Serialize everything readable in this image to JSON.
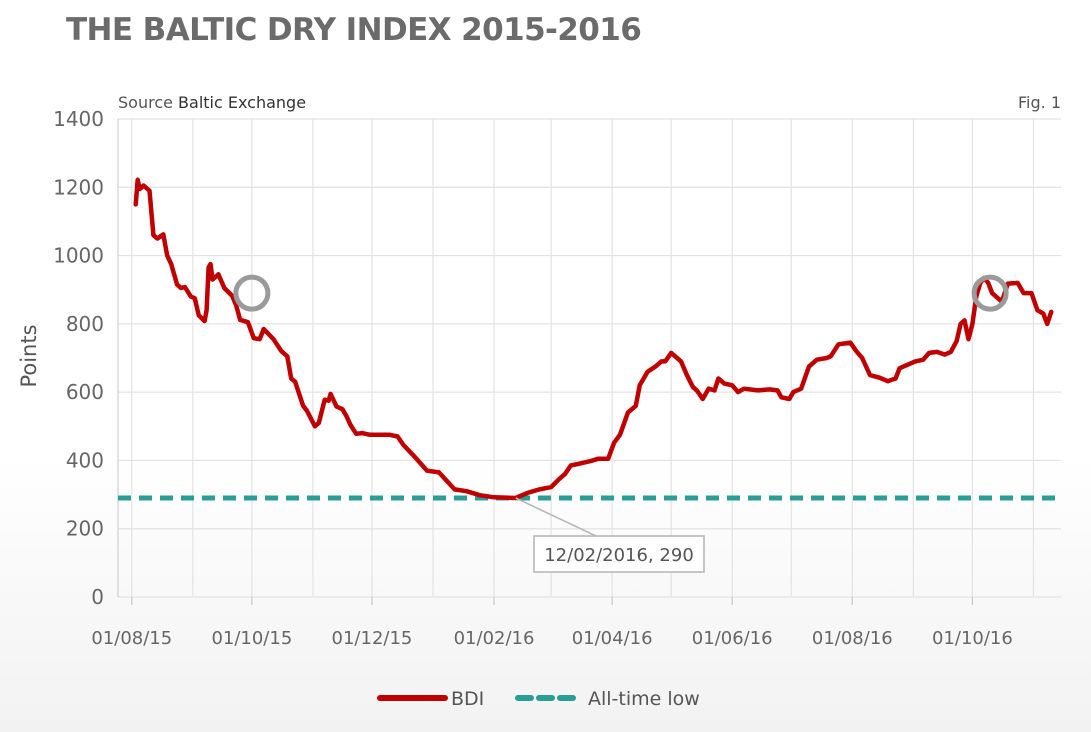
{
  "title": "THE BALTIC DRY INDEX 2015-2016",
  "source_prefix": "Source ",
  "source_name": "Baltic Exchange",
  "fig_label": "Fig. 1",
  "annotation": "12/02/2016, 290",
  "chart_data": {
    "type": "line",
    "title": "THE BALTIC DRY INDEX 2015-2016",
    "ylabel": "Points",
    "xlabel": "",
    "ylim": [
      0,
      1400
    ],
    "xlim": [
      "2015-08-01",
      "2016-10-31"
    ],
    "yticks": [
      0,
      200,
      400,
      600,
      800,
      1000,
      1200,
      1400
    ],
    "xtick_labels": [
      "01/08/15",
      "01/10/15",
      "01/12/15",
      "01/02/16",
      "01/04/16",
      "01/06/16",
      "01/08/16",
      "01/10/16"
    ],
    "xtick_dates": [
      "2015-08-01",
      "2015-10-01",
      "2015-12-01",
      "2016-02-01",
      "2016-04-01",
      "2016-06-01",
      "2016-08-01",
      "2016-10-01"
    ],
    "grid": true,
    "legend_position": "bottom-center",
    "colors": {
      "bdi": "#c00000",
      "low": "#2a9d96",
      "circle": "#9a9a9a",
      "grid": "#e3e3e3"
    },
    "series": [
      {
        "name": "BDI",
        "points": [
          [
            "2015-08-03",
            1150
          ],
          [
            "2015-08-04",
            1222
          ],
          [
            "2015-08-05",
            1195
          ],
          [
            "2015-08-07",
            1205
          ],
          [
            "2015-08-10",
            1190
          ],
          [
            "2015-08-12",
            1060
          ],
          [
            "2015-08-14",
            1050
          ],
          [
            "2015-08-17",
            1062
          ],
          [
            "2015-08-19",
            1000
          ],
          [
            "2015-08-21",
            975
          ],
          [
            "2015-08-24",
            915
          ],
          [
            "2015-08-26",
            905
          ],
          [
            "2015-08-28",
            908
          ],
          [
            "2015-08-31",
            880
          ],
          [
            "2015-09-02",
            875
          ],
          [
            "2015-09-04",
            825
          ],
          [
            "2015-09-07",
            808
          ],
          [
            "2015-09-08",
            840
          ],
          [
            "2015-09-09",
            965
          ],
          [
            "2015-09-10",
            975
          ],
          [
            "2015-09-11",
            930
          ],
          [
            "2015-09-14",
            945
          ],
          [
            "2015-09-17",
            905
          ],
          [
            "2015-09-21",
            882
          ],
          [
            "2015-09-23",
            855
          ],
          [
            "2015-09-25",
            812
          ],
          [
            "2015-09-29",
            805
          ],
          [
            "2015-10-02",
            758
          ],
          [
            "2015-10-05",
            755
          ],
          [
            "2015-10-07",
            785
          ],
          [
            "2015-10-12",
            755
          ],
          [
            "2015-10-16",
            720
          ],
          [
            "2015-10-19",
            705
          ],
          [
            "2015-10-21",
            640
          ],
          [
            "2015-10-23",
            630
          ],
          [
            "2015-10-27",
            560
          ],
          [
            "2015-10-29",
            545
          ],
          [
            "2015-11-02",
            500
          ],
          [
            "2015-11-04",
            510
          ],
          [
            "2015-11-07",
            578
          ],
          [
            "2015-11-09",
            575
          ],
          [
            "2015-11-10",
            595
          ],
          [
            "2015-11-13",
            558
          ],
          [
            "2015-11-16",
            550
          ],
          [
            "2015-11-18",
            530
          ],
          [
            "2015-11-20",
            505
          ],
          [
            "2015-11-23",
            478
          ],
          [
            "2015-11-26",
            480
          ],
          [
            "2015-11-30",
            475
          ],
          [
            "2015-12-10",
            475
          ],
          [
            "2015-12-14",
            470
          ],
          [
            "2015-12-17",
            445
          ],
          [
            "2015-12-22",
            415
          ],
          [
            "2015-12-29",
            370
          ],
          [
            "2016-01-04",
            365
          ],
          [
            "2016-01-08",
            340
          ],
          [
            "2016-01-12",
            315
          ],
          [
            "2016-01-18",
            310
          ],
          [
            "2016-01-25",
            298
          ],
          [
            "2016-02-01",
            292
          ],
          [
            "2016-02-12",
            290
          ],
          [
            "2016-02-18",
            305
          ],
          [
            "2016-02-24",
            315
          ],
          [
            "2016-03-01",
            322
          ],
          [
            "2016-03-05",
            345
          ],
          [
            "2016-03-08",
            360
          ],
          [
            "2016-03-11",
            385
          ],
          [
            "2016-03-15",
            390
          ],
          [
            "2016-03-21",
            398
          ],
          [
            "2016-03-25",
            405
          ],
          [
            "2016-03-30",
            405
          ],
          [
            "2016-04-02",
            452
          ],
          [
            "2016-04-05",
            475
          ],
          [
            "2016-04-09",
            540
          ],
          [
            "2016-04-13",
            560
          ],
          [
            "2016-04-15",
            620
          ],
          [
            "2016-04-19",
            660
          ],
          [
            "2016-04-23",
            675
          ],
          [
            "2016-04-26",
            690
          ],
          [
            "2016-04-28",
            690
          ],
          [
            "2016-05-01",
            715
          ],
          [
            "2016-05-04",
            700
          ],
          [
            "2016-05-06",
            690
          ],
          [
            "2016-05-09",
            650
          ],
          [
            "2016-05-12",
            615
          ],
          [
            "2016-05-14",
            605
          ],
          [
            "2016-05-17",
            580
          ],
          [
            "2016-05-20",
            610
          ],
          [
            "2016-05-23",
            605
          ],
          [
            "2016-05-25",
            640
          ],
          [
            "2016-05-28",
            625
          ],
          [
            "2016-06-01",
            620
          ],
          [
            "2016-06-04",
            600
          ],
          [
            "2016-06-07",
            610
          ],
          [
            "2016-06-14",
            605
          ],
          [
            "2016-06-20",
            608
          ],
          [
            "2016-06-24",
            605
          ],
          [
            "2016-06-26",
            585
          ],
          [
            "2016-06-30",
            580
          ],
          [
            "2016-07-02",
            600
          ],
          [
            "2016-07-06",
            610
          ],
          [
            "2016-07-10",
            675
          ],
          [
            "2016-07-14",
            695
          ],
          [
            "2016-07-19",
            700
          ],
          [
            "2016-07-21",
            705
          ],
          [
            "2016-07-25",
            740
          ],
          [
            "2016-07-31",
            745
          ],
          [
            "2016-08-03",
            720
          ],
          [
            "2016-08-06",
            700
          ],
          [
            "2016-08-10",
            650
          ],
          [
            "2016-08-15",
            642
          ],
          [
            "2016-08-19",
            632
          ],
          [
            "2016-08-23",
            640
          ],
          [
            "2016-08-25",
            670
          ],
          [
            "2016-08-29",
            680
          ],
          [
            "2016-09-02",
            690
          ],
          [
            "2016-09-06",
            695
          ],
          [
            "2016-09-09",
            715
          ],
          [
            "2016-09-13",
            718
          ],
          [
            "2016-09-17",
            710
          ],
          [
            "2016-09-20",
            718
          ],
          [
            "2016-09-23",
            750
          ],
          [
            "2016-09-25",
            800
          ],
          [
            "2016-09-27",
            810
          ],
          [
            "2016-09-29",
            755
          ],
          [
            "2016-10-01",
            800
          ],
          [
            "2016-10-03",
            880
          ],
          [
            "2016-10-05",
            920
          ],
          [
            "2016-10-07",
            935
          ],
          [
            "2016-10-09",
            920
          ],
          [
            "2016-10-11",
            890
          ],
          [
            "2016-10-14",
            875
          ],
          [
            "2016-10-16",
            865
          ],
          [
            "2016-10-19",
            918
          ],
          [
            "2016-10-24",
            920
          ],
          [
            "2016-10-27",
            890
          ],
          [
            "2016-10-31",
            890
          ],
          [
            "2016-11-03",
            840
          ],
          [
            "2016-11-06",
            830
          ],
          [
            "2016-11-08",
            800
          ],
          [
            "2016-11-10",
            835
          ]
        ]
      },
      {
        "name": "All-time low",
        "value": 290
      }
    ],
    "annotations": [
      {
        "text": "12/02/2016, 290",
        "date": "2016-02-12",
        "value": 290
      }
    ],
    "highlight_circles": [
      {
        "date": "2015-10-01",
        "value": 890
      },
      {
        "date": "2016-10-10",
        "value": 890
      }
    ]
  }
}
